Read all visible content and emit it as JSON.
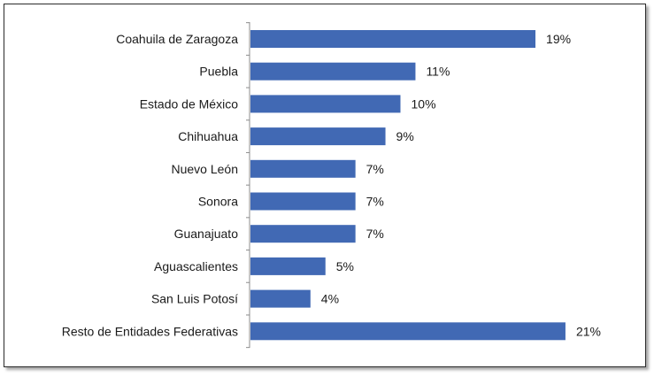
{
  "chart_data": {
    "type": "bar",
    "orientation": "horizontal",
    "categories": [
      "Coahuila de Zaragoza",
      "Puebla",
      "Estado de México",
      "Chihuahua",
      "Nuevo León",
      "Sonora",
      "Guanajuato",
      "Aguascalientes",
      "San Luis Potosí",
      "Resto de Entidades Federativas"
    ],
    "values": [
      19,
      11,
      10,
      9,
      7,
      7,
      7,
      5,
      4,
      21
    ],
    "value_labels": [
      "19%",
      "11%",
      "10%",
      "9%",
      "7%",
      "7%",
      "7%",
      "5%",
      "4%",
      "21%"
    ],
    "unit": "%",
    "title": "",
    "xlabel": "",
    "ylabel": "",
    "grid": false,
    "legend": "none",
    "colors": {
      "bar": "#4169B4",
      "axis": "#8c8c8c",
      "frame": "#2b2b2b"
    }
  }
}
